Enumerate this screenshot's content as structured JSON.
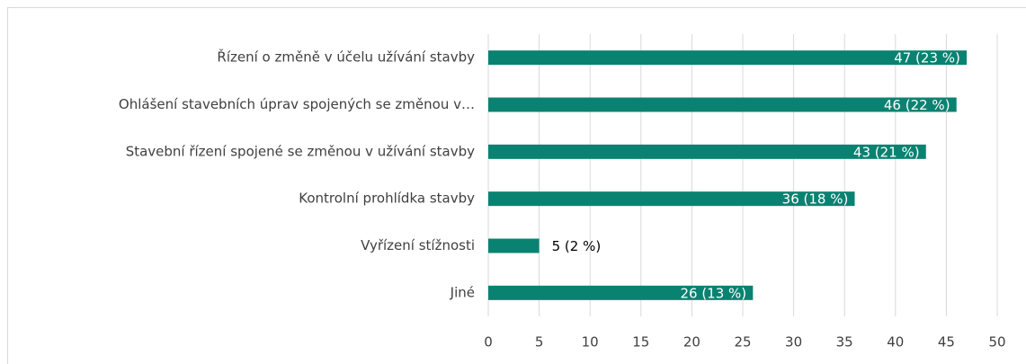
{
  "chart_data": {
    "type": "bar",
    "orientation": "horizontal",
    "categories": [
      "Řízení o změně v účelu užívání stavby",
      "Ohlášení stavebních úprav spojených se změnou v…",
      "Stavební řízení spojené se změnou v užívání stavby",
      "Kontrolní prohlídka stavby",
      "Vyřízení stížnosti",
      "Jiné"
    ],
    "values": [
      47,
      46,
      43,
      36,
      5,
      26
    ],
    "value_labels": [
      "47 (23 %)",
      "46 (22 %)",
      "43 (21 %)",
      "36 (18 %)",
      "5 (2 %)",
      "26 (13 %)"
    ],
    "color": "#0a8271",
    "xlim": [
      0,
      50
    ],
    "xticks": [
      0,
      5,
      10,
      15,
      20,
      25,
      30,
      35,
      40,
      45,
      50
    ],
    "grid": true
  }
}
